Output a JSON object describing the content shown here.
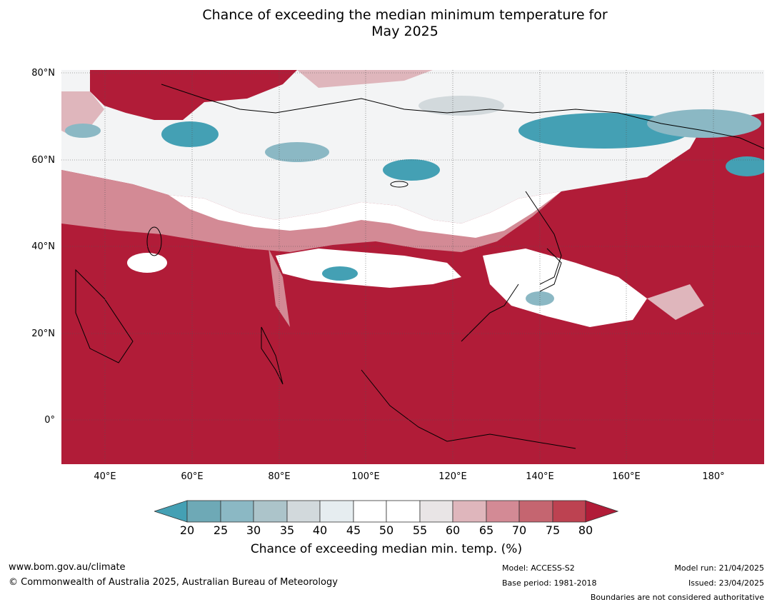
{
  "title": {
    "line1": "Chance of exceeding the median minimum temperature for",
    "line2": "May 2025"
  },
  "map": {
    "latitude_labels": [
      "80°N",
      "60°N",
      "40°N",
      "20°N",
      "0°"
    ],
    "longitude_labels": [
      "40°E",
      "60°E",
      "80°E",
      "100°E",
      "120°E",
      "140°E",
      "160°E",
      "180°"
    ],
    "colors": {
      "ocean_high": "#b11c38",
      "white": "#ffffff",
      "teal": "#44a0b4",
      "pink": "#d68a96",
      "grey": "#dde3e7"
    }
  },
  "colorbar": {
    "ticks": [
      "20",
      "25",
      "30",
      "35",
      "40",
      "45",
      "50",
      "55",
      "60",
      "65",
      "70",
      "75",
      "80"
    ],
    "colors": [
      "#44a0b4",
      "#6ea9b6",
      "#8bb8c4",
      "#acc4ca",
      "#d2d9dc",
      "#e6edf0",
      "#ffffff",
      "#ffffff",
      "#e9e5e6",
      "#dfb6bc",
      "#d38a95",
      "#c56570",
      "#bd4251",
      "#b11c38"
    ],
    "label": "Chance of exceeding median min. temp. (%)"
  },
  "footer": {
    "website": "www.bom.gov.au/climate",
    "copyright": "© Commonwealth of Australia 2025, Australian Bureau of Meteorology",
    "model": "Model: ACCESS-S2",
    "base_period": "Base period: 1981-2018",
    "model_run": "Model run: 21/04/2025",
    "issued": "Issued: 23/04/2025",
    "disclaimer": "Boundaries are not considered authoritative"
  }
}
